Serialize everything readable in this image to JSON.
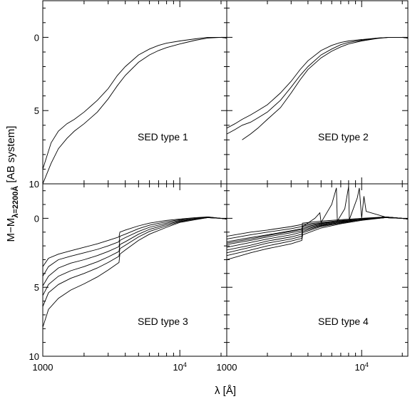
{
  "chart_data": [
    {
      "type": "line",
      "label": "SED type 1",
      "xlog": true,
      "xlim": [
        1000,
        22000
      ],
      "ylim": [
        10,
        -2.5
      ],
      "yinverted": true,
      "series": [
        {
          "x": [
            1000,
            1150,
            1300,
            1500,
            1700,
            2000,
            2500,
            3000,
            3500,
            4000,
            5000,
            6000,
            7000,
            8000,
            10000,
            13000,
            16000,
            20000,
            22000
          ],
          "y": [
            9.0,
            7.2,
            6.4,
            5.9,
            5.6,
            5.1,
            4.3,
            3.5,
            2.6,
            2.0,
            1.2,
            0.8,
            0.55,
            0.4,
            0.25,
            0.1,
            0.0,
            0.0,
            0.05
          ]
        },
        {
          "x": [
            1000,
            1150,
            1300,
            1500,
            1700,
            2000,
            2500,
            3000,
            3500,
            4000,
            5000,
            6000,
            7000,
            8000,
            10000,
            13000,
            16000,
            20000,
            22000
          ],
          "y": [
            10.0,
            8.6,
            7.6,
            6.9,
            6.4,
            5.9,
            5.1,
            4.2,
            3.3,
            2.6,
            1.7,
            1.2,
            0.9,
            0.7,
            0.45,
            0.2,
            0.05,
            0.0,
            0.05
          ]
        }
      ]
    },
    {
      "type": "line",
      "label": "SED type 2",
      "xlog": true,
      "xlim": [
        1000,
        22000
      ],
      "ylim": [
        10,
        -2.5
      ],
      "yinverted": true,
      "series": [
        {
          "x": [
            1000,
            1150,
            1300,
            1500,
            1700,
            2000,
            2500,
            3000,
            3500,
            4000,
            5000,
            6000,
            7000,
            8000,
            10000,
            13000,
            16000,
            20000,
            22000
          ],
          "y": [
            6.2,
            5.9,
            5.6,
            5.3,
            5.0,
            4.6,
            3.8,
            3.0,
            2.2,
            1.6,
            0.9,
            0.55,
            0.35,
            0.25,
            0.15,
            0.05,
            0.0,
            0.0,
            0.05
          ]
        },
        {
          "x": [
            1000,
            1150,
            1300,
            1500,
            1700,
            2000,
            2500,
            3000,
            3500,
            4000,
            5000,
            6000,
            7000,
            8000,
            10000,
            13000,
            16000,
            20000,
            22000
          ],
          "y": [
            6.6,
            6.3,
            6.0,
            5.8,
            5.5,
            5.1,
            4.3,
            3.4,
            2.6,
            2.0,
            1.2,
            0.8,
            0.5,
            0.35,
            0.2,
            0.05,
            0.0,
            0.0,
            0.05
          ]
        },
        {
          "x": [
            1300,
            1500,
            1700,
            2000,
            2500,
            3000,
            3500,
            4000,
            5000,
            6000,
            7000,
            8000,
            10000,
            13000,
            16000,
            20000,
            22000
          ],
          "y": [
            7.0,
            6.6,
            6.2,
            5.6,
            4.8,
            3.8,
            2.9,
            2.2,
            1.4,
            0.95,
            0.65,
            0.45,
            0.25,
            0.08,
            0.0,
            0.0,
            0.05
          ]
        }
      ]
    },
    {
      "type": "line",
      "label": "SED type 3",
      "xlog": true,
      "xlim": [
        1000,
        22000
      ],
      "ylim": [
        10,
        -2.5
      ],
      "yinverted": true,
      "series": [
        {
          "x": [
            1000,
            1100,
            1300,
            1600,
            2000,
            2500,
            3000,
            3600,
            3650,
            4000,
            5000,
            6000,
            8000,
            10000,
            13000,
            16000,
            20000,
            22000
          ],
          "y": [
            3.5,
            2.9,
            2.6,
            2.35,
            2.1,
            1.85,
            1.6,
            1.35,
            1.0,
            0.85,
            0.55,
            0.35,
            0.15,
            0.05,
            -0.05,
            -0.1,
            0.0,
            0.05
          ]
        },
        {
          "x": [
            1000,
            1100,
            1300,
            1600,
            2000,
            2500,
            3000,
            3600,
            3650,
            4000,
            5000,
            6000,
            8000,
            10000,
            13000,
            16000,
            20000,
            22000
          ],
          "y": [
            4.2,
            3.5,
            3.0,
            2.75,
            2.5,
            2.25,
            2.0,
            1.7,
            1.3,
            1.15,
            0.75,
            0.5,
            0.25,
            0.1,
            0.0,
            -0.1,
            0.0,
            0.05
          ]
        },
        {
          "x": [
            1000,
            1100,
            1300,
            1600,
            2000,
            2500,
            3000,
            3600,
            3650,
            4000,
            5000,
            6000,
            8000,
            10000,
            13000,
            16000,
            20000,
            22000
          ],
          "y": [
            4.9,
            4.2,
            3.6,
            3.25,
            3.0,
            2.7,
            2.4,
            2.05,
            1.6,
            1.4,
            0.95,
            0.65,
            0.35,
            0.15,
            0.0,
            -0.05,
            0.0,
            0.05
          ]
        },
        {
          "x": [
            1000,
            1100,
            1300,
            1600,
            2000,
            2500,
            3000,
            3600,
            3650,
            4000,
            5000,
            6000,
            8000,
            10000,
            13000,
            16000,
            20000,
            22000
          ],
          "y": [
            5.6,
            4.8,
            4.2,
            3.8,
            3.5,
            3.15,
            2.8,
            2.4,
            1.9,
            1.7,
            1.15,
            0.8,
            0.45,
            0.2,
            0.05,
            -0.05,
            0.0,
            0.05
          ]
        },
        {
          "x": [
            1000,
            1100,
            1300,
            1600,
            2000,
            2500,
            3000,
            3600,
            3650,
            4000,
            5000,
            6000,
            8000,
            10000,
            13000,
            16000,
            20000,
            22000
          ],
          "y": [
            6.4,
            5.4,
            4.8,
            4.35,
            4.0,
            3.6,
            3.2,
            2.75,
            2.2,
            1.95,
            1.35,
            0.95,
            0.55,
            0.25,
            0.05,
            -0.05,
            0.0,
            0.05
          ]
        },
        {
          "x": [
            1000,
            1100,
            1300,
            1600,
            2000,
            2500,
            3000,
            3600,
            3650,
            4000,
            5000,
            6000,
            8000,
            10000,
            13000,
            16000,
            20000,
            22000
          ],
          "y": [
            7.9,
            6.6,
            5.8,
            5.2,
            4.75,
            4.25,
            3.75,
            3.2,
            2.6,
            2.3,
            1.6,
            1.15,
            0.65,
            0.3,
            0.1,
            -0.05,
            0.0,
            0.05
          ]
        }
      ]
    },
    {
      "type": "line",
      "label": "SED type 4",
      "xlog": true,
      "xlim": [
        1000,
        22000
      ],
      "ylim": [
        10,
        -2.5
      ],
      "yinverted": true,
      "series": [
        {
          "x": [
            1000,
            1500,
            2000,
            3000,
            3600,
            3650,
            5000,
            7000,
            10000,
            15000,
            20000,
            22000
          ],
          "y": [
            1.3,
            1.0,
            0.85,
            0.6,
            0.45,
            0.35,
            0.2,
            0.1,
            0.0,
            -0.1,
            0.0,
            0.05
          ]
        },
        {
          "x": [
            1000,
            1500,
            2000,
            3000,
            3600,
            3650,
            5000,
            7000,
            10000,
            15000,
            20000,
            22000
          ],
          "y": [
            1.5,
            1.2,
            1.0,
            0.75,
            0.6,
            0.45,
            0.3,
            0.15,
            0.05,
            -0.1,
            0.0,
            0.05
          ]
        },
        {
          "x": [
            1000,
            1500,
            2000,
            3000,
            3600,
            3650,
            5000,
            7000,
            10000,
            15000,
            20000,
            22000
          ],
          "y": [
            1.7,
            1.4,
            1.2,
            0.9,
            0.75,
            0.55,
            0.35,
            0.2,
            0.05,
            -0.1,
            0.0,
            0.05
          ]
        },
        {
          "x": [
            1000,
            1500,
            2000,
            3000,
            3600,
            3650,
            5000,
            7000,
            10000,
            15000,
            20000,
            22000
          ],
          "y": [
            1.9,
            1.6,
            1.35,
            1.05,
            0.9,
            0.65,
            0.4,
            0.2,
            0.05,
            -0.1,
            0.0,
            0.05
          ]
        },
        {
          "x": [
            1000,
            1500,
            2000,
            3000,
            3600,
            3650,
            5000,
            7000,
            10000,
            15000,
            20000,
            22000
          ],
          "y": [
            2.1,
            1.75,
            1.5,
            1.2,
            1.0,
            0.75,
            0.45,
            0.25,
            0.1,
            -0.05,
            0.0,
            0.05
          ]
        },
        {
          "x": [
            1000,
            1500,
            2000,
            3000,
            3600,
            3650,
            5000,
            7000,
            10000,
            15000,
            20000,
            22000
          ],
          "y": [
            2.3,
            1.95,
            1.65,
            1.35,
            1.15,
            0.85,
            0.5,
            0.3,
            0.1,
            -0.05,
            0.0,
            0.05
          ]
        },
        {
          "x": [
            1000,
            1500,
            2000,
            3000,
            3600,
            3650,
            5000,
            7000,
            10000,
            15000,
            20000,
            22000
          ],
          "y": [
            2.5,
            2.1,
            1.8,
            1.5,
            1.3,
            0.95,
            0.55,
            0.3,
            0.1,
            -0.05,
            0.0,
            0.05
          ]
        },
        {
          "x": [
            1000,
            1500,
            2000,
            3000,
            3600,
            3650,
            5000,
            7000,
            10000,
            15000,
            20000,
            22000
          ],
          "y": [
            2.7,
            2.3,
            2.0,
            1.65,
            1.45,
            1.05,
            0.6,
            0.35,
            0.1,
            -0.05,
            0.0,
            0.05
          ]
        },
        {
          "x": [
            1000,
            1500,
            2000,
            3000,
            3600,
            3650,
            5000,
            7000,
            10000,
            15000,
            20000,
            22000
          ],
          "y": [
            3.0,
            2.5,
            2.2,
            1.85,
            1.6,
            1.2,
            0.7,
            0.4,
            0.15,
            -0.05,
            0.0,
            0.05
          ]
        },
        {
          "x": [
            1000,
            1500,
            2000,
            3000,
            3600,
            3650,
            4500,
            4900,
            5000,
            6000,
            6500,
            6600,
            7500,
            8000,
            8100,
            9300,
            9600,
            10000,
            10400,
            10800,
            15000,
            20000,
            22000
          ],
          "y": [
            1.8,
            1.5,
            1.25,
            0.95,
            0.8,
            0.6,
            0.0,
            -0.4,
            0.3,
            -1.0,
            -2.2,
            0.2,
            -0.7,
            -2.3,
            0.1,
            -1.5,
            -2.2,
            0.0,
            -1.6,
            -0.5,
            -0.1,
            0.0,
            0.05
          ]
        }
      ]
    }
  ],
  "axes": {
    "xlabel": "λ [Å]",
    "ylabel_main": "M−M",
    "ylabel_sub": "λ=2200Å",
    "ylabel_tail": " [AB system]",
    "x_tick_labels": [
      {
        "value": 1000,
        "text": "1000"
      },
      {
        "value": 10000,
        "text": "10",
        "sup": "4"
      }
    ],
    "y_tick_labels": [
      "0",
      "5",
      "10"
    ]
  }
}
